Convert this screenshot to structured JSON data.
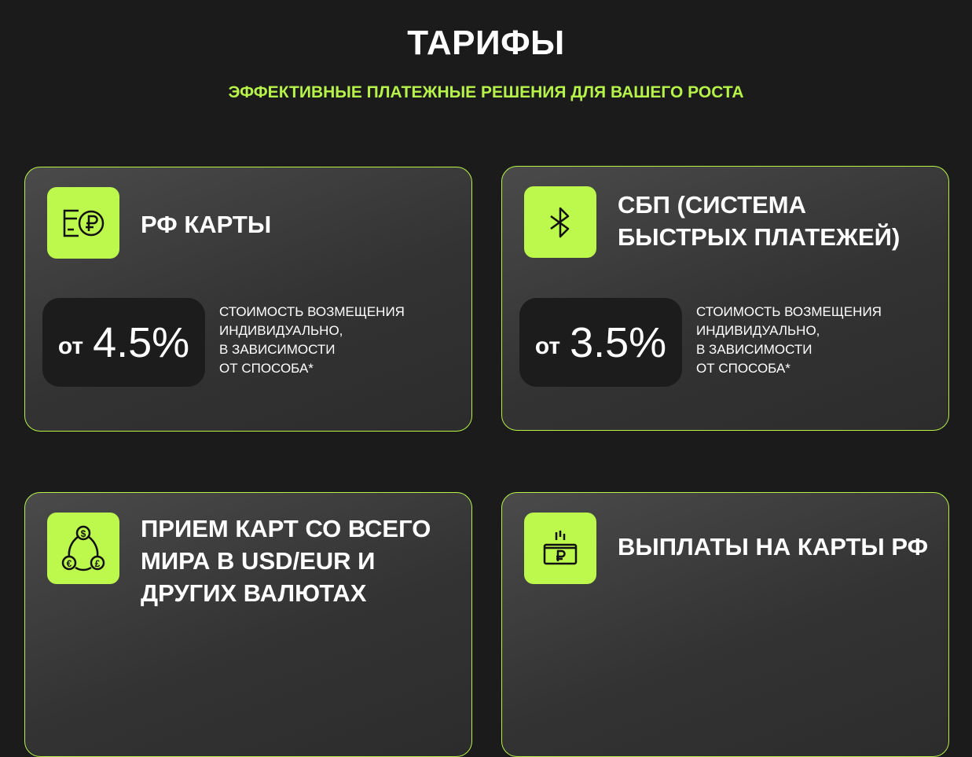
{
  "header": {
    "title": "ТАРИФЫ",
    "subtitle": "ЭФФЕКТИВНЫЕ ПЛАТЕЖНЫЕ РЕШЕНИЯ ДЛЯ ВАШЕГО РОСТА"
  },
  "accent_color": "#b6f24a",
  "cards": [
    {
      "icon": "card-ruble-icon",
      "title": "РФ КАРТЫ",
      "price_prefix": "от",
      "price": "4.5%",
      "desc": [
        "СТОИМОСТЬ ВОЗМЕЩЕНИЯ",
        "ИНДИВИДУАЛЬНО,",
        "В ЗАВИСИМОСТИ",
        "ОТ СПОСОБА*"
      ]
    },
    {
      "icon": "sbp-icon",
      "title": "СБП (СИСТЕМА БЫСТРЫХ ПЛАТЕЖЕЙ)",
      "price_prefix": "от",
      "price": "3.5%",
      "desc": [
        "СТОИМОСТЬ ВОЗМЕЩЕНИЯ",
        "ИНДИВИДУАЛЬНО,",
        "В ЗАВИСИМОСТИ",
        "ОТ СПОСОБА*"
      ]
    },
    {
      "icon": "currency-exchange-icon",
      "title": "ПРИЕМ КАРТ СО ВСЕГО МИРА В USD/EUR И ДРУГИХ ВАЛЮТАХ"
    },
    {
      "icon": "ruble-payout-icon",
      "title": "ВЫПЛАТЫ НА КАРТЫ РФ"
    }
  ]
}
